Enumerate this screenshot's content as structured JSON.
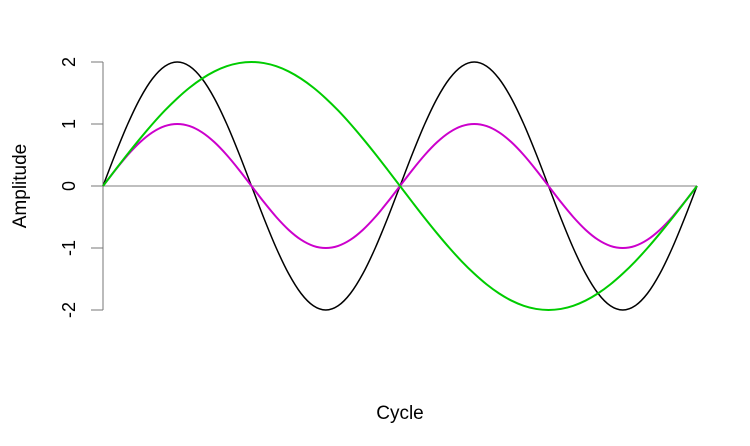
{
  "chart_data": {
    "type": "line",
    "title": "",
    "xlabel": "Cycle",
    "ylabel": "Amplitude",
    "ylim": [
      -2,
      2
    ],
    "yticks": [
      "-2",
      "-1",
      "0",
      "1",
      "2"
    ],
    "xticks": [],
    "grid": false,
    "reference_line": {
      "y": 0,
      "color": "#999999"
    },
    "series": [
      {
        "color": "#000000",
        "values": [
          0,
          0.518,
          1,
          1.414,
          1.732,
          1.932,
          2,
          1.932,
          1.732,
          1.414,
          1,
          0.518,
          0,
          -0.518,
          -1,
          -1.414,
          -1.732,
          -1.932,
          -2,
          -1.932,
          -1.732,
          -1.414,
          -1,
          -0.518,
          0,
          0.518,
          1,
          1.414,
          1.732,
          1.932,
          2,
          1.932,
          1.732,
          1.414,
          1,
          0.518,
          0,
          -0.518,
          -1,
          -1.414,
          -1.732,
          -1.932,
          -2,
          -1.932,
          -1.732,
          -1.414,
          -1,
          -0.518,
          0
        ]
      },
      {
        "color": "#cc00cc",
        "values": [
          0,
          0.259,
          0.5,
          0.707,
          0.866,
          0.966,
          1,
          0.966,
          0.866,
          0.707,
          0.5,
          0.259,
          0,
          -0.259,
          -0.5,
          -0.707,
          -0.866,
          -0.966,
          -1,
          -0.966,
          -0.866,
          -0.707,
          -0.5,
          -0.259,
          0,
          0.259,
          0.5,
          0.707,
          0.866,
          0.966,
          1,
          0.966,
          0.866,
          0.707,
          0.5,
          0.259,
          0,
          -0.259,
          -0.5,
          -0.707,
          -0.866,
          -0.966,
          -1,
          -0.966,
          -0.866,
          -0.707,
          -0.5,
          -0.259,
          0
        ]
      },
      {
        "color": "#00cc00",
        "values": [
          0,
          0.261,
          0.518,
          0.765,
          1,
          1.218,
          1.414,
          1.587,
          1.732,
          1.848,
          1.932,
          1.983,
          2,
          1.983,
          1.932,
          1.848,
          1.732,
          1.587,
          1.414,
          1.218,
          1,
          0.765,
          0.518,
          0.261,
          0,
          -0.261,
          -0.518,
          -0.765,
          -1,
          -1.218,
          -1.414,
          -1.587,
          -1.732,
          -1.848,
          -1.932,
          -1.983,
          -2,
          -1.983,
          -1.932,
          -1.848,
          -1.732,
          -1.587,
          -1.414,
          -1.218,
          -1,
          -0.765,
          -0.518,
          -0.261,
          0
        ]
      }
    ]
  }
}
